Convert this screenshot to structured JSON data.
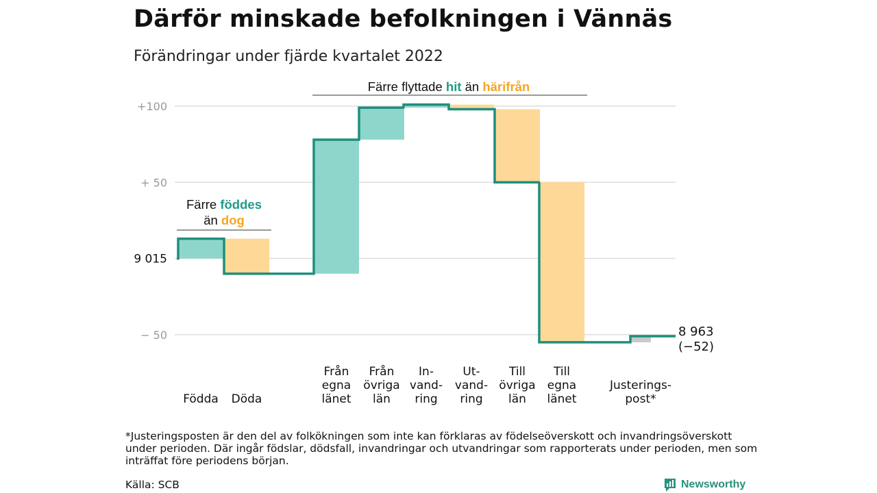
{
  "title": "Därför minskade befolkningen i Vännäs",
  "subtitle": "Förändringar under fjärde kvartalet 2022",
  "chart_data": {
    "type": "waterfall",
    "start_value": 9015,
    "start_label": "9 015",
    "end_label_value": "8 963",
    "end_label_change": "(−52)",
    "ylim": [
      -55,
      105
    ],
    "y_ticks": [
      {
        "value": 100,
        "label": "+100"
      },
      {
        "value": 50,
        "label": "+ 50"
      },
      {
        "value": 0,
        "label": ""
      },
      {
        "value": -50,
        "label": "− 50"
      }
    ],
    "steps": [
      {
        "category": [
          "Födda"
        ],
        "change": 13,
        "kind": "in"
      },
      {
        "category": [
          "Döda"
        ],
        "change": -23,
        "kind": "out"
      },
      {
        "category": [
          "Från",
          "egna",
          "länet"
        ],
        "change": 88,
        "kind": "in"
      },
      {
        "category": [
          "Från",
          "övriga",
          "län"
        ],
        "change": 21,
        "kind": "in"
      },
      {
        "category": [
          "In-",
          "vand-",
          "ring"
        ],
        "change": 2,
        "kind": "in"
      },
      {
        "category": [
          "Ut-",
          "vand-",
          "ring"
        ],
        "change": -3,
        "kind": "out"
      },
      {
        "category": [
          "Till",
          "övriga",
          "län"
        ],
        "change": -48,
        "kind": "out"
      },
      {
        "category": [
          "Till",
          "egna",
          "länet"
        ],
        "change": -105,
        "kind": "out"
      },
      {
        "category": [
          "Justerings-",
          "post*"
        ],
        "change": 4,
        "kind": "adjust"
      }
    ],
    "annotations": {
      "births": {
        "prefix": "Färre ",
        "word1": "föddes",
        "middle": "än ",
        "word2": "dog"
      },
      "moves": {
        "prefix": "Färre flyttade ",
        "word1": "hit",
        "middle": " än ",
        "word2": "härifrån"
      }
    },
    "colors": {
      "line": "#1f8f7d",
      "in": "#8ed6cc",
      "out": "#fdd896",
      "adjust": "#c8c8c8",
      "in_text": "#1f9c87",
      "out_text": "#f5a623",
      "grid": "#dddddd",
      "tick": "#999999"
    }
  },
  "footnote": "*Justeringsposten är den del av folkökningen som inte kan förklaras av födelseöverskott och invandringsöverskott under perioden. Där ingår födslar, dödsfall, invandringar och utvandringar som rapporterats under perioden, men som inträffat före periodens början.",
  "source": "Källa: SCB",
  "brand": "Newsworthy"
}
